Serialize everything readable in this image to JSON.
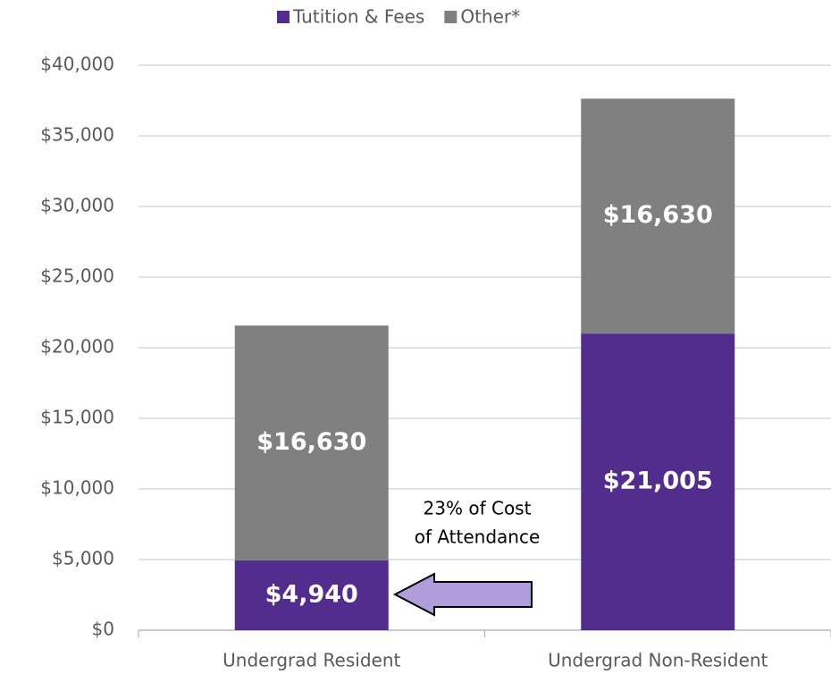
{
  "chart_data": {
    "type": "stacked_bar",
    "categories": [
      "Undergrad Resident",
      "Undergrad Non-Resident"
    ],
    "series": [
      {
        "name": "Tutition & Fees",
        "color": "#532d8e",
        "values": [
          4940,
          21005
        ],
        "value_labels": [
          "$4,940",
          "$21,005"
        ]
      },
      {
        "name": "Other*",
        "color": "#808080",
        "values": [
          16630,
          16630
        ],
        "value_labels": [
          "$16,630",
          "$16,630"
        ]
      }
    ],
    "ylim": [
      0,
      40000
    ],
    "yticks": [
      {
        "value": 0,
        "label": "$0"
      },
      {
        "value": 5000,
        "label": "$5,000"
      },
      {
        "value": 10000,
        "label": "$10,000"
      },
      {
        "value": 15000,
        "label": "$15,000"
      },
      {
        "value": 20000,
        "label": "$20,000"
      },
      {
        "value": 25000,
        "label": "$25,000"
      },
      {
        "value": 30000,
        "label": "$30,000"
      },
      {
        "value": 35000,
        "label": "$35,000"
      },
      {
        "value": 40000,
        "label": "$40,000"
      }
    ],
    "grid": true,
    "legend": "top",
    "annotation": [
      "23% of Cost",
      "of Attendance"
    ]
  }
}
